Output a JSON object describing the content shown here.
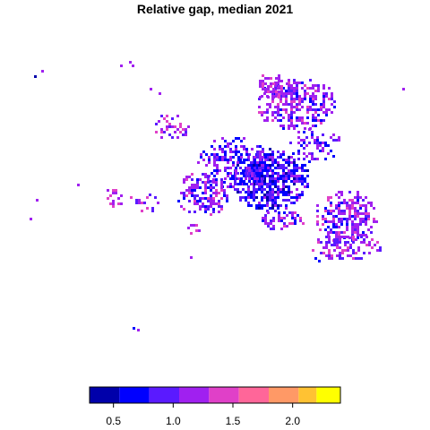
{
  "title": "Relative gap, median 2021",
  "legend": {
    "colors": [
      "#0000aa",
      "#0000ff",
      "#5a1aff",
      "#a020f0",
      "#e040c8",
      "#ff6699",
      "#ff9966",
      "#ffc233",
      "#ffff00"
    ],
    "breaks": [
      0.3,
      0.55,
      0.8,
      1.05,
      1.3,
      1.55,
      1.8,
      2.05,
      2.2,
      2.4
    ],
    "tick_values": [
      0.5,
      1.0,
      1.5,
      2.0
    ],
    "tick_labels": [
      "0.5",
      "1.0",
      "1.5",
      "2.0"
    ]
  },
  "map": {
    "color_scale": "plasma-like",
    "regions": [
      {
        "name": "central-core",
        "dominant_value": 0.6
      },
      {
        "name": "north-east",
        "dominant_value": 1.0
      },
      {
        "name": "east",
        "dominant_value": 0.9
      },
      {
        "name": "west",
        "dominant_value": 1.1
      },
      {
        "name": "south-east",
        "dominant_value": 1.0
      },
      {
        "name": "outliers",
        "dominant_value": 1.0
      }
    ]
  }
}
